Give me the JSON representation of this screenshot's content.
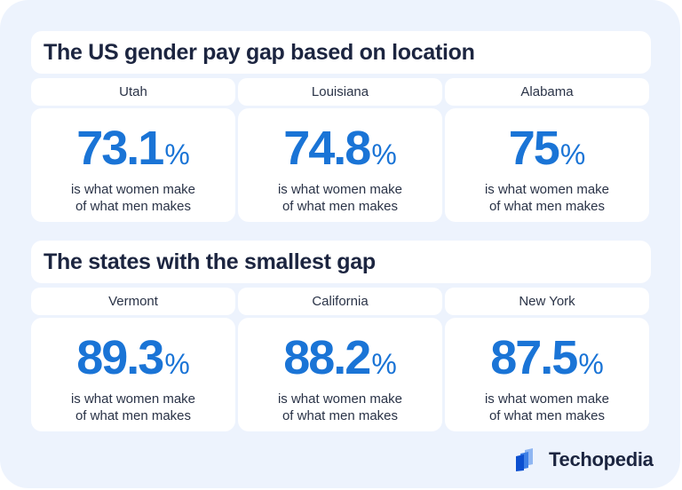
{
  "sections": [
    {
      "title": "The US gender pay gap based on location",
      "items": [
        {
          "state": "Utah",
          "value": "73.1",
          "unit": "%",
          "line1": "is what women make",
          "line2": "of what men makes"
        },
        {
          "state": "Louisiana",
          "value": "74.8",
          "unit": "%",
          "line1": "is what women make",
          "line2": "of what men makes"
        },
        {
          "state": "Alabama",
          "value": "75",
          "unit": "%",
          "line1": "is what women make",
          "line2": "of what men makes"
        }
      ]
    },
    {
      "title": "The states with the smallest gap",
      "items": [
        {
          "state": "Vermont",
          "value": "89.3",
          "unit": "%",
          "line1": "is what women make",
          "line2": "of what men makes"
        },
        {
          "state": "California",
          "value": "88.2",
          "unit": "%",
          "line1": "is what women make",
          "line2": "of what men makes"
        },
        {
          "state": "New York",
          "value": "87.5",
          "unit": "%",
          "line1": "is what women make",
          "line2": "of what men makes"
        }
      ]
    }
  ],
  "brand": {
    "name": "Techopedia",
    "logo_icon": "techopedia-logo-icon"
  },
  "colors": {
    "accent": "#1a74d6",
    "background": "#edf3fd",
    "text": "#1c2540"
  }
}
